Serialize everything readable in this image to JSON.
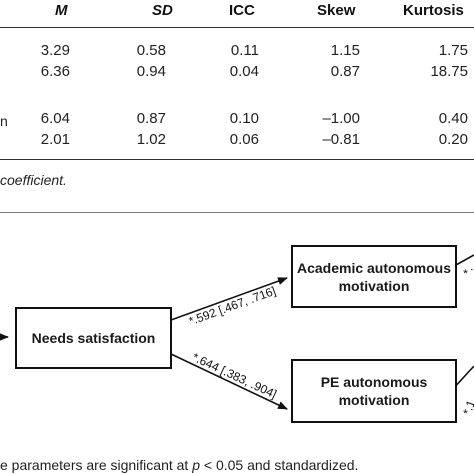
{
  "table": {
    "headers": {
      "m": "M",
      "sd": "SD",
      "icc": "ICC",
      "skew": "Skew",
      "kurtosis": "Kurtosis"
    },
    "rows": [
      {
        "label": "",
        "m": "3.29",
        "sd": "0.58",
        "icc": "0.11",
        "skew": "1.15",
        "kurtosis": "1.75"
      },
      {
        "label": "",
        "m": "6.36",
        "sd": "0.94",
        "icc": "0.04",
        "skew": "0.87",
        "kurtosis": "18.75"
      },
      {
        "label": "n",
        "m": "6.04",
        "sd": "0.87",
        "icc": "0.10",
        "skew": "–1.00",
        "kurtosis": "0.40"
      },
      {
        "label": "",
        "m": "2.01",
        "sd": "1.02",
        "icc": "0.06",
        "skew": "–0.81",
        "kurtosis": "0.20"
      }
    ],
    "note": "coefficient."
  },
  "diagram": {
    "boxes": {
      "needs": "Needs satisfaction",
      "academic_line1": "Academic autonomous",
      "academic_line2": "motivation",
      "pe_line1": "PE autonomous",
      "pe_line2": "motivation"
    },
    "paths": {
      "upper": "*.592 [.467, .716]",
      "lower": "*.644 [.383, .904]",
      "right_top": "*.",
      "right_bottom": "*.1"
    },
    "footnote_prefix": "e parameters are significant at ",
    "footnote_p": "p",
    "footnote_suffix": " < 0.05 and standardized."
  }
}
